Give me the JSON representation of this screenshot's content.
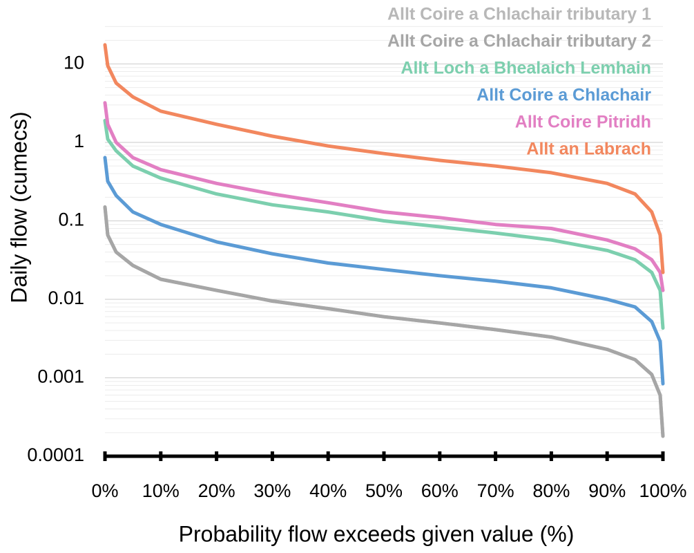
{
  "chart_data": {
    "type": "line",
    "x_label": "Probability flow exceeds given value (%)",
    "y_label": "Daily flow (cumecs)",
    "y_log": true,
    "grid": true,
    "minor_grid": true,
    "legend": "top-right",
    "xlim": [
      0,
      100
    ],
    "ylim": [
      0.0001,
      30
    ],
    "xticks": [
      {
        "value": 0,
        "label": "0%"
      },
      {
        "value": 10,
        "label": "10%"
      },
      {
        "value": 20,
        "label": "20%"
      },
      {
        "value": 30,
        "label": "30%"
      },
      {
        "value": 40,
        "label": "40%"
      },
      {
        "value": 50,
        "label": "50%"
      },
      {
        "value": 60,
        "label": "60%"
      },
      {
        "value": 70,
        "label": "70%"
      },
      {
        "value": 80,
        "label": "80%"
      },
      {
        "value": 90,
        "label": "90%"
      },
      {
        "value": 100,
        "label": "100%"
      }
    ],
    "yticks": [
      0.0001,
      0.001,
      0.01,
      0.1,
      1,
      10
    ],
    "x": [
      0,
      0.5,
      2,
      5,
      10,
      20,
      30,
      40,
      50,
      60,
      70,
      80,
      90,
      95,
      98,
      99.5,
      100
    ],
    "series": [
      {
        "name": "Allt Coire a Chlachair tributary 1",
        "color": "#b8b8b8",
        "values": [
          0.15,
          0.066,
          0.04,
          0.027,
          0.018,
          0.013,
          0.0095,
          0.0076,
          0.006,
          0.005,
          0.0041,
          0.0033,
          0.0023,
          0.0017,
          0.0011,
          0.0006,
          0.00018
        ]
      },
      {
        "name": "Allt Coire a Chlachair tributary 2",
        "color": "#a6a6a6",
        "values": [
          0.15,
          0.066,
          0.04,
          0.027,
          0.018,
          0.013,
          0.0095,
          0.0076,
          0.006,
          0.005,
          0.0041,
          0.0033,
          0.0023,
          0.0017,
          0.0011,
          0.0006,
          0.00018
        ]
      },
      {
        "name": "Allt Loch a Bhealaich Lemhain",
        "color": "#7ccfae",
        "values": [
          1.9,
          1.1,
          0.78,
          0.5,
          0.35,
          0.22,
          0.16,
          0.13,
          0.1,
          0.084,
          0.07,
          0.057,
          0.042,
          0.032,
          0.022,
          0.013,
          0.0043
        ]
      },
      {
        "name": "Allt Coire a Chlachair",
        "color": "#5b9bd5",
        "values": [
          0.64,
          0.32,
          0.21,
          0.13,
          0.09,
          0.054,
          0.038,
          0.029,
          0.024,
          0.02,
          0.017,
          0.014,
          0.01,
          0.008,
          0.0052,
          0.0029,
          0.00084
        ]
      },
      {
        "name": "Allt Coire Pitridh",
        "color": "#e27fc3",
        "values": [
          3.2,
          1.7,
          1.0,
          0.64,
          0.45,
          0.3,
          0.22,
          0.17,
          0.13,
          0.11,
          0.09,
          0.08,
          0.057,
          0.044,
          0.032,
          0.022,
          0.013
        ]
      },
      {
        "name": "Allt an Labrach",
        "color": "#f2875e",
        "values": [
          17.5,
          9.5,
          5.7,
          3.8,
          2.5,
          1.7,
          1.2,
          0.9,
          0.72,
          0.59,
          0.5,
          0.41,
          0.3,
          0.22,
          0.13,
          0.066,
          0.022
        ]
      }
    ]
  }
}
